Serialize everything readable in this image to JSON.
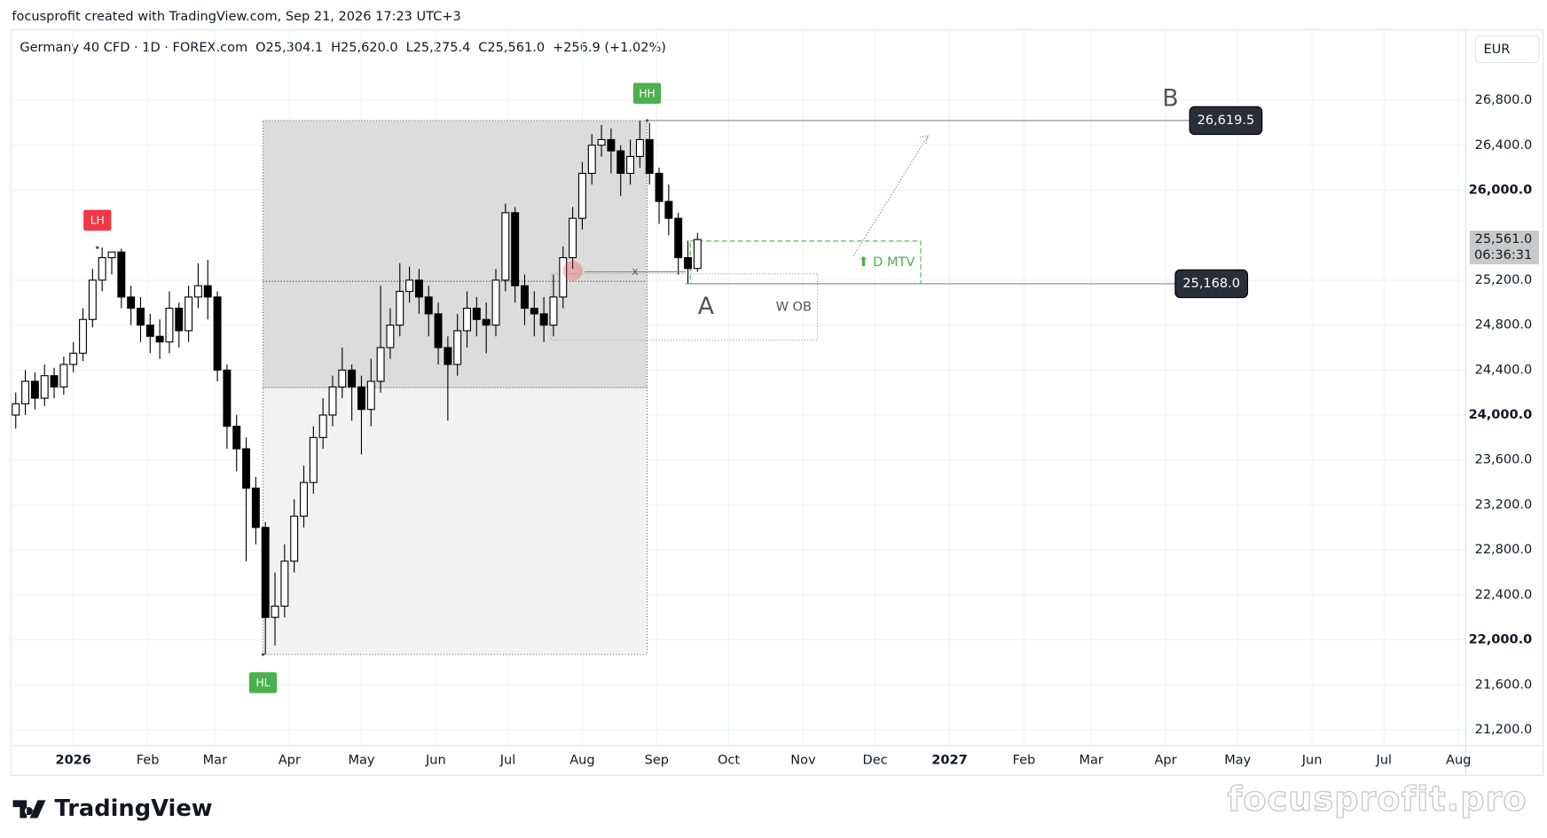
{
  "attribution": "focusprofit created with TradingView.com, Sep 21, 2026 17:23 UTC+3",
  "watermark": "focusprofit.pro",
  "logo": "TradingView",
  "chart_data": {
    "type": "candlestick",
    "title": "Germany 40 CFD · 1D · FOREX.com",
    "stats": [
      "O25,304.1",
      "H25,620.0",
      "L25,275.4",
      "C25,561.0",
      "+256.9 (+1.02%)"
    ],
    "currency": "EUR",
    "up_color": "#ffffff",
    "down_color": "#000000",
    "wick_color": "#000000",
    "grid": true,
    "xlim": [
      -25.6,
      580
    ],
    "ylim": [
      21059,
      27426
    ],
    "xticks": [
      {
        "value": 0,
        "label": "2026"
      },
      {
        "value": 31,
        "label": "Feb"
      },
      {
        "value": 59,
        "label": "Mar"
      },
      {
        "value": 90,
        "label": "Apr"
      },
      {
        "value": 120,
        "label": "May"
      },
      {
        "value": 151,
        "label": "Jun"
      },
      {
        "value": 181,
        "label": "Jul"
      },
      {
        "value": 212,
        "label": "Aug"
      },
      {
        "value": 243,
        "label": "Sep"
      },
      {
        "value": 273,
        "label": "Oct"
      },
      {
        "value": 304,
        "label": "Nov"
      },
      {
        "value": 334,
        "label": "Dec"
      },
      {
        "value": 365,
        "label": "2027"
      },
      {
        "value": 396,
        "label": "Feb"
      },
      {
        "value": 424,
        "label": "Mar"
      },
      {
        "value": 455,
        "label": "Apr"
      },
      {
        "value": 485,
        "label": "May"
      },
      {
        "value": 516,
        "label": "Jun"
      },
      {
        "value": 546,
        "label": "Jul"
      },
      {
        "value": 577,
        "label": "Aug"
      }
    ],
    "yticks": [
      {
        "value": 21200,
        "label": "21,200.0"
      },
      {
        "value": 21600,
        "label": "21,600.0"
      },
      {
        "value": 22000,
        "label": "22,000.0"
      },
      {
        "value": 22400,
        "label": "22,400.0"
      },
      {
        "value": 22800,
        "label": "22,800.0"
      },
      {
        "value": 23200,
        "label": "23,200.0"
      },
      {
        "value": 23600,
        "label": "23,600.0"
      },
      {
        "value": 24000,
        "label": "24,000.0"
      },
      {
        "value": 24400,
        "label": "24,400.0"
      },
      {
        "value": 24800,
        "label": "24,800.0"
      },
      {
        "value": 25200,
        "label": "25,200.0"
      },
      {
        "value": 26000,
        "label": "26,000.0"
      },
      {
        "value": 26400,
        "label": "26,400.0"
      },
      {
        "value": 26800,
        "label": "26,800.0"
      }
    ],
    "x": [
      -24,
      -20,
      -16,
      -12,
      -8,
      -4,
      0,
      4,
      8,
      12,
      16,
      20,
      24,
      28,
      32,
      36,
      40,
      44,
      48,
      52,
      56,
      60,
      64,
      68,
      72,
      76,
      80,
      84,
      88,
      92,
      96,
      100,
      104,
      108,
      112,
      116,
      120,
      124,
      128,
      132,
      136,
      140,
      144,
      148,
      152,
      156,
      160,
      164,
      168,
      172,
      176,
      180,
      184,
      188,
      192,
      196,
      200,
      204,
      208,
      212,
      216,
      220,
      224,
      228,
      232,
      236,
      240,
      244,
      248,
      252,
      256,
      260
    ],
    "open": [
      24000,
      24100,
      24300,
      24150,
      24350,
      24250,
      24450,
      24550,
      24850,
      25200,
      25400,
      25450,
      25050,
      24950,
      24800,
      24700,
      24650,
      24950,
      24750,
      25050,
      25150,
      25050,
      24400,
      23900,
      23700,
      23350,
      23000,
      22200,
      22300,
      22700,
      23100,
      23400,
      23800,
      24000,
      24250,
      24400,
      24250,
      24050,
      24300,
      24600,
      24800,
      25100,
      25200,
      25050,
      24900,
      24600,
      24450,
      24750,
      24950,
      24850,
      24800,
      25200,
      25800,
      25150,
      24950,
      24900,
      24800,
      25050,
      25400,
      25750,
      26150,
      26400,
      26450,
      26350,
      26150,
      26300,
      26450,
      26150,
      25900,
      25750,
      25400,
      25304
    ],
    "high": [
      24200,
      24400,
      24380,
      24450,
      24420,
      24520,
      24650,
      24950,
      25300,
      25490,
      25450,
      25480,
      25150,
      25050,
      24900,
      24850,
      25100,
      25000,
      25150,
      25350,
      25380,
      25100,
      24450,
      24000,
      23800,
      23450,
      23050,
      22600,
      22850,
      23250,
      23550,
      23900,
      24150,
      24350,
      24600,
      24450,
      24350,
      24500,
      25150,
      24950,
      25350,
      25320,
      25300,
      25150,
      25000,
      24700,
      24900,
      25100,
      25050,
      25000,
      25300,
      25880,
      25850,
      25250,
      25100,
      25050,
      25250,
      25500,
      25850,
      26250,
      26500,
      26580,
      26550,
      26400,
      26450,
      26620,
      26600,
      26200,
      26050,
      25800,
      25550,
      25620
    ],
    "low": [
      23880,
      24000,
      24050,
      24080,
      24150,
      24180,
      24380,
      24480,
      24780,
      25100,
      25250,
      24950,
      24800,
      24650,
      24550,
      24500,
      24550,
      24600,
      24650,
      24950,
      24850,
      24300,
      23700,
      23500,
      22700,
      22850,
      21870,
      21950,
      22200,
      22600,
      23000,
      23300,
      23700,
      23900,
      24150,
      23950,
      23650,
      23900,
      24200,
      24500,
      24700,
      25000,
      24900,
      24700,
      24450,
      23950,
      24350,
      24600,
      24700,
      24550,
      24700,
      25100,
      25000,
      24800,
      24700,
      24650,
      24700,
      24950,
      25300,
      25650,
      26050,
      26300,
      26150,
      25950,
      26050,
      26200,
      26050,
      25700,
      25600,
      25250,
      25168,
      25275
    ],
    "close": [
      24100,
      24300,
      24150,
      24350,
      24250,
      24450,
      24550,
      24850,
      25200,
      25400,
      25450,
      25050,
      24950,
      24800,
      24700,
      24650,
      24950,
      24750,
      25050,
      25150,
      25050,
      24400,
      23900,
      23700,
      23350,
      23000,
      22200,
      22300,
      22700,
      23100,
      23400,
      23800,
      24000,
      24250,
      24400,
      24250,
      24050,
      24300,
      24600,
      24800,
      25100,
      25200,
      25050,
      24900,
      24600,
      24450,
      24750,
      24950,
      24850,
      24800,
      25200,
      25800,
      25150,
      24950,
      24900,
      24800,
      25050,
      25400,
      25750,
      26150,
      26400,
      26450,
      26350,
      26150,
      26300,
      26450,
      26150,
      25900,
      25750,
      25400,
      25304,
      25561
    ],
    "range_box": {
      "x": [
        79,
        239
      ],
      "y": [
        21870,
        26619.5
      ],
      "split": 24245,
      "mid": 25190
    },
    "price_lines": [
      {
        "value": 26619.5,
        "label": "26,619.5",
        "x": [
          239,
          465
        ]
      },
      {
        "value": 25168,
        "label": "25,168.0",
        "x": [
          255,
          459
        ]
      }
    ],
    "last_price": {
      "value": 25561,
      "label": "25,561.0",
      "countdown": "06:36:31"
    },
    "markers": [
      {
        "text": "HH",
        "x": 239,
        "y": 26619.5,
        "color": "#4caf50",
        "side": "above"
      },
      {
        "text": "LH",
        "x": 10,
        "y": 25490,
        "color": "#f23645",
        "side": "above"
      },
      {
        "text": "HL",
        "x": 79,
        "y": 21870,
        "color": "#4caf50",
        "side": "below"
      }
    ],
    "letters": [
      {
        "text": "A",
        "x": 263.5,
        "y": 24957
      },
      {
        "text": "B",
        "x": 457,
        "y": 26809
      }
    ],
    "zones": [
      {
        "text": "⬆ D MTV",
        "x": [
          257,
          353
        ],
        "y": [
          25168,
          25548
        ],
        "color": "#4caf50",
        "style": "dashed"
      },
      {
        "text": "W OB",
        "x": [
          199,
          310
        ],
        "y": [
          24666,
          25257
        ],
        "color": "#9e9e9e",
        "style": "dotted"
      }
    ],
    "arrow": {
      "x": [
        325,
        356
      ],
      "y": [
        25416,
        26483
      ]
    },
    "cross": {
      "text": "x",
      "x": [
        213,
        255
      ],
      "y": 25274,
      "point": [
        208,
        25283
      ]
    }
  }
}
